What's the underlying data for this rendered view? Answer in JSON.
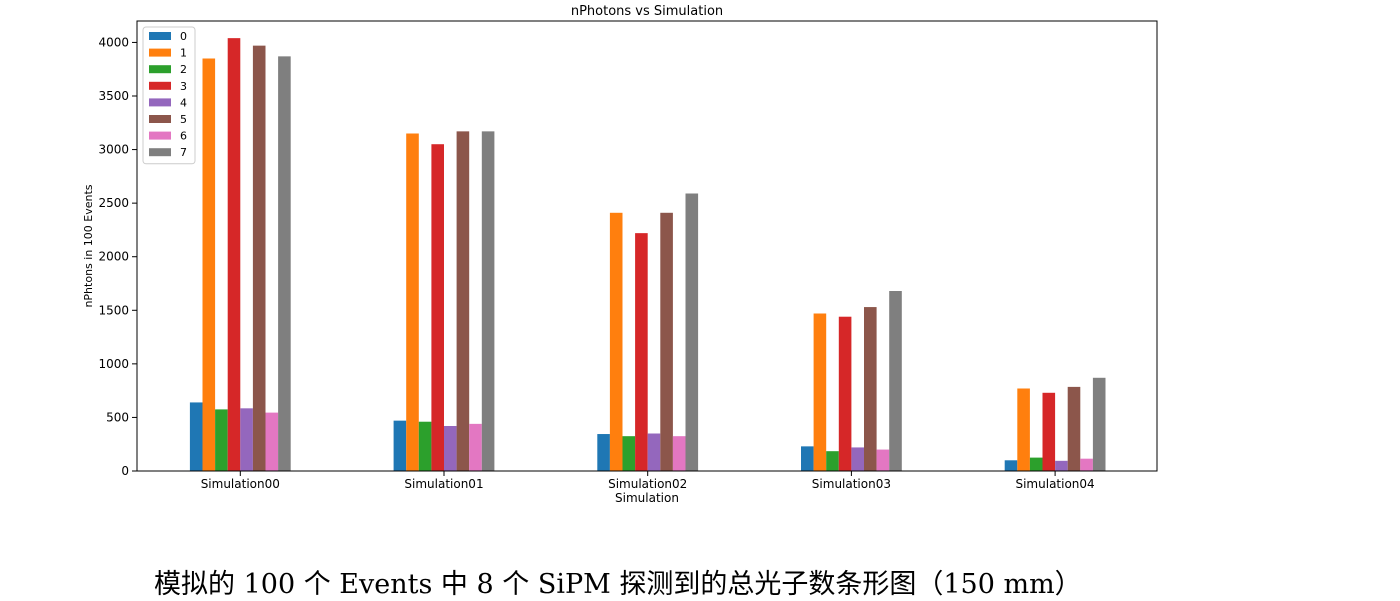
{
  "chart_data": {
    "type": "bar",
    "title": "nPhotons vs Simulation",
    "xlabel": "Simulation",
    "ylabel": "nPhtons in 100 Events",
    "ylim": [
      0,
      4200
    ],
    "yticks": [
      0,
      500,
      1000,
      1500,
      2000,
      2500,
      3000,
      3500,
      4000
    ],
    "categories": [
      "Simulation00",
      "Simulation01",
      "Simulation02",
      "Simulation03",
      "Simulation04"
    ],
    "legend_position": "top-left",
    "grid": false,
    "series": [
      {
        "name": "0",
        "color": "#1f77b4",
        "values": [
          640,
          470,
          345,
          230,
          100
        ]
      },
      {
        "name": "1",
        "color": "#ff7f0e",
        "values": [
          3850,
          3150,
          2410,
          1470,
          770
        ]
      },
      {
        "name": "2",
        "color": "#2ca02c",
        "values": [
          575,
          460,
          325,
          185,
          125
        ]
      },
      {
        "name": "3",
        "color": "#d62728",
        "values": [
          4040,
          3050,
          2220,
          1440,
          730
        ]
      },
      {
        "name": "4",
        "color": "#9467bd",
        "values": [
          585,
          420,
          350,
          220,
          95
        ]
      },
      {
        "name": "5",
        "color": "#8c564b",
        "values": [
          3970,
          3170,
          2410,
          1530,
          785
        ]
      },
      {
        "name": "6",
        "color": "#e377c2",
        "values": [
          545,
          440,
          325,
          200,
          115
        ]
      },
      {
        "name": "7",
        "color": "#7f7f7f",
        "values": [
          3870,
          3170,
          2590,
          1680,
          870
        ]
      }
    ]
  },
  "caption": "模拟的 100 个 Events 中 8 个 SiPM 探测到的总光子数条形图（150 mm）"
}
